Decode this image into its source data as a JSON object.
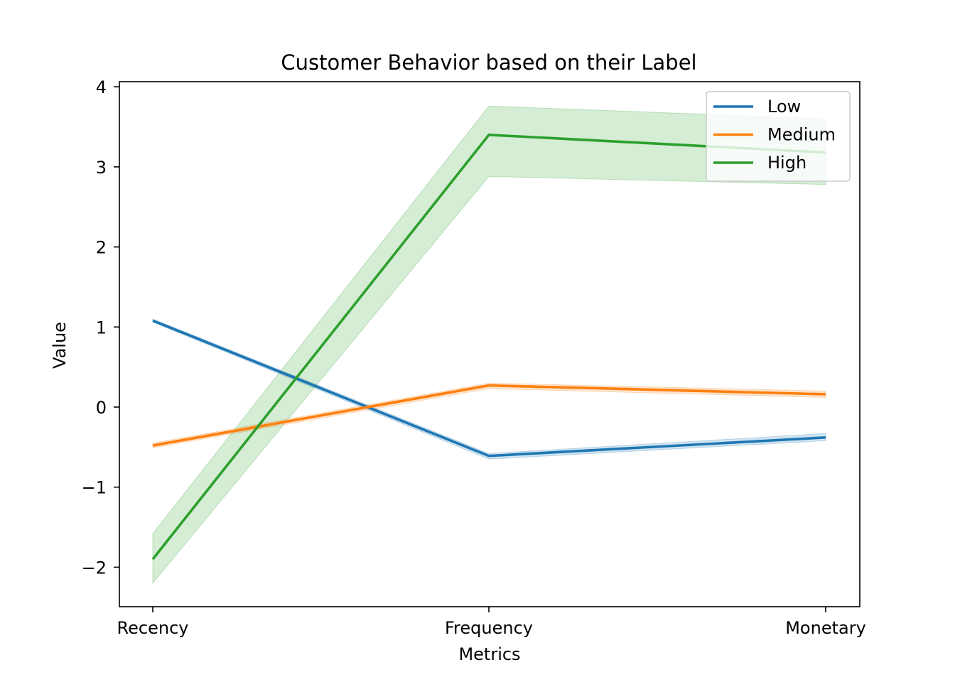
{
  "chart_data": {
    "type": "line",
    "title": "Customer Behavior based on their Label",
    "xlabel": "Metrics",
    "ylabel": "Value",
    "categories": [
      "Recency",
      "Frequency",
      "Monetary"
    ],
    "ylim": [
      -2.5,
      4.05
    ],
    "yticks": [
      {
        "value": -2,
        "label": "−2"
      },
      {
        "value": -1,
        "label": "−1"
      },
      {
        "value": 0,
        "label": "0"
      },
      {
        "value": 1,
        "label": "1"
      },
      {
        "value": 2,
        "label": "2"
      },
      {
        "value": 3,
        "label": "3"
      },
      {
        "value": 4,
        "label": "4"
      }
    ],
    "grid": false,
    "legend_position": "top-right",
    "series": [
      {
        "name": "Low",
        "color": "#1f77b4",
        "values": [
          1.08,
          -0.61,
          -0.38
        ],
        "ci_low": [
          1.06,
          -0.65,
          -0.42
        ],
        "ci_high": [
          1.1,
          -0.58,
          -0.33
        ]
      },
      {
        "name": "Medium",
        "color": "#ff7f0e",
        "values": [
          -0.48,
          0.27,
          0.16
        ],
        "ci_low": [
          -0.51,
          0.23,
          0.12
        ],
        "ci_high": [
          -0.45,
          0.3,
          0.2
        ]
      },
      {
        "name": "High",
        "color": "#2ca02c",
        "values": [
          -1.9,
          3.4,
          3.18
        ],
        "ci_low": [
          -2.2,
          2.88,
          2.78
        ],
        "ci_high": [
          -1.58,
          3.76,
          3.6
        ]
      }
    ]
  }
}
